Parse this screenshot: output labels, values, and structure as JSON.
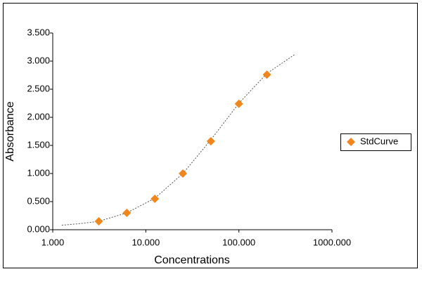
{
  "chart_data": {
    "type": "scatter",
    "x_label": "Concentrations",
    "y_label": "Absorbance",
    "xscale": "log",
    "xlim": [
      1,
      1000
    ],
    "xticks": [
      {
        "value": 1,
        "label": "1.000"
      },
      {
        "value": 10,
        "label": "10.000"
      },
      {
        "value": 100,
        "label": "100.000"
      },
      {
        "value": 1000,
        "label": "1000.000"
      }
    ],
    "ylim": [
      0,
      3.5
    ],
    "yticks": [
      {
        "value": 0,
        "label": "0.000"
      },
      {
        "value": 0.5,
        "label": "0.500"
      },
      {
        "value": 1,
        "label": "1.000"
      },
      {
        "value": 1.5,
        "label": "1.500"
      },
      {
        "value": 2,
        "label": "2.000"
      },
      {
        "value": 2.5,
        "label": "2.500"
      },
      {
        "value": 3,
        "label": "3.000"
      },
      {
        "value": 3.5,
        "label": "3.500"
      }
    ],
    "legend": "right",
    "series": [
      {
        "name": "StdCurve",
        "color": "#f0861c",
        "x": [
          3.125,
          6.25,
          12.5,
          25,
          50,
          100,
          200
        ],
        "values": [
          0.15,
          0.3,
          0.55,
          1.0,
          1.575,
          2.24,
          2.76
        ]
      }
    ],
    "curve": {
      "color": "#555555",
      "x": [
        1.25,
        2,
        3.125,
        6.25,
        12.5,
        25,
        50,
        100,
        200,
        400
      ],
      "values": [
        0.08,
        0.11,
        0.15,
        0.3,
        0.56,
        1.0,
        1.6,
        2.25,
        2.78,
        3.12
      ]
    }
  }
}
